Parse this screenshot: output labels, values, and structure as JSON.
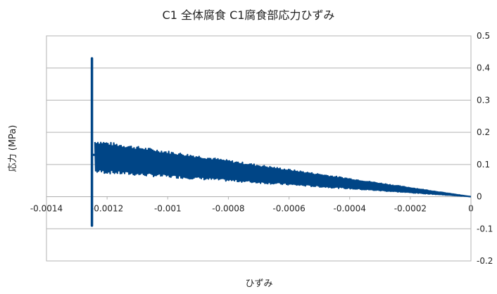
{
  "chart_data": {
    "type": "line",
    "title": "C1  全体腐食  C1腐食部応力ひずみ",
    "xlabel": "ひずみ",
    "ylabel": "応力 (MPa)",
    "xlim": [
      -0.0014,
      0
    ],
    "ylim": [
      -0.2,
      0.5
    ],
    "x_ticks": [
      "-0.0014",
      "-0.0012",
      "-0.001",
      "-0.0008",
      "-0.0006",
      "-0.0004",
      "-0.0002",
      "0"
    ],
    "y_ticks": [
      "-0.2",
      "-0.1",
      "0",
      "0.1",
      "0.2",
      "0.3",
      "0.4",
      "0.5"
    ],
    "y_axis_side": "right",
    "grid": "horizontal",
    "legend": "none",
    "series": [
      {
        "color": "#004586",
        "approx_shape": {
          "oscillating_band": {
            "x_from": -0.00124,
            "x_to": 0,
            "band_top_at_start": 0.17,
            "band_bottom_at_start": 0.08,
            "converges_to": 0
          },
          "vertical_segment": {
            "x": -0.00125,
            "y_min": -0.09,
            "y_max": 0.43
          }
        }
      }
    ]
  }
}
